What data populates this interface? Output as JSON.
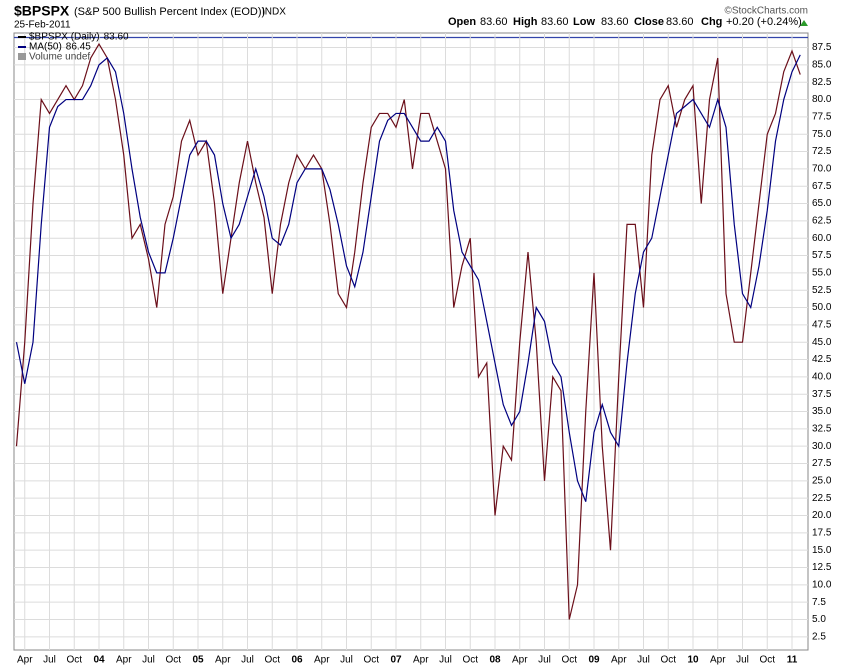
{
  "header": {
    "symbol": "$BPSPX",
    "description": "(S&P 500 Bullish Percent Index (EOD))",
    "exchange": "INDX",
    "date": "25-Feb-2011",
    "quote": [
      {
        "label": "Open",
        "value": "83.60"
      },
      {
        "label": "High",
        "value": "83.60"
      },
      {
        "label": "Low",
        "value": "83.60"
      },
      {
        "label": "Close",
        "value": "83.60"
      },
      {
        "label": "Chg",
        "value": "+0.20 (+0.24%)"
      }
    ],
    "credit": "©StockCharts.com"
  },
  "chart_data": {
    "type": "line",
    "categories": [
      null,
      "Apr",
      null,
      null,
      "Jul",
      null,
      null,
      "Oct",
      null,
      null,
      "04",
      null,
      null,
      "Apr",
      null,
      null,
      "Jul",
      null,
      null,
      "Oct",
      null,
      null,
      "05",
      null,
      null,
      "Apr",
      null,
      null,
      "Jul",
      null,
      null,
      "Oct",
      null,
      null,
      "06",
      null,
      null,
      "Apr",
      null,
      null,
      "Jul",
      null,
      null,
      "Oct",
      null,
      null,
      "07",
      null,
      null,
      "Apr",
      null,
      null,
      "Jul",
      null,
      null,
      "Oct",
      null,
      null,
      "08",
      null,
      null,
      "Apr",
      null,
      null,
      "Jul",
      null,
      null,
      "Oct",
      null,
      null,
      "09",
      null,
      null,
      "Apr",
      null,
      null,
      "Jul",
      null,
      null,
      "Oct",
      null,
      null,
      "10",
      null,
      null,
      "Apr",
      null,
      null,
      "Jul",
      null,
      null,
      "Oct",
      null,
      null,
      "11",
      null
    ],
    "series": [
      {
        "name": "$BPSPX (Daily)",
        "legend_value": "83.60",
        "color": "#6b0f1a",
        "values": [
          30,
          45,
          65,
          80,
          78,
          80,
          82,
          80,
          82,
          86,
          88,
          86,
          80,
          72,
          60,
          62,
          57,
          50,
          62,
          66,
          74,
          77,
          72,
          74,
          65,
          52,
          60,
          68,
          74,
          68,
          63,
          52,
          62,
          68,
          72,
          70,
          72,
          70,
          62,
          52,
          50,
          58,
          68,
          76,
          78,
          78,
          76,
          80,
          70,
          78,
          78,
          74,
          70,
          50,
          56,
          60,
          40,
          42,
          20,
          30,
          28,
          45,
          58,
          45,
          25,
          40,
          38,
          5,
          10,
          35,
          55,
          30,
          15,
          40,
          62,
          62,
          50,
          72,
          80,
          82,
          76,
          80,
          82,
          65,
          80,
          86,
          52,
          45,
          45,
          55,
          65,
          75,
          78,
          84,
          87,
          83.6
        ]
      },
      {
        "name": "MA(50)",
        "legend_value": "86.45",
        "color": "#000080",
        "values": [
          45,
          39,
          45,
          62,
          76,
          79,
          80,
          80,
          80,
          82,
          85,
          86,
          84,
          78,
          70,
          63,
          58,
          55,
          55,
          60,
          66,
          72,
          74,
          74,
          72,
          65,
          60,
          62,
          66,
          70,
          66,
          60,
          59,
          62,
          68,
          70,
          70,
          70,
          67,
          62,
          56,
          53,
          58,
          66,
          74,
          77,
          78,
          78,
          76,
          74,
          74,
          76,
          74,
          64,
          58,
          56,
          54,
          48,
          42,
          36,
          33,
          35,
          42,
          50,
          48,
          42,
          40,
          32,
          25,
          22,
          32,
          36,
          32,
          30,
          42,
          52,
          58,
          60,
          66,
          72,
          78,
          79,
          80,
          78,
          76,
          80,
          76,
          62,
          52,
          50,
          56,
          64,
          74,
          80,
          84,
          86.45
        ]
      }
    ],
    "volume_label": "Volume undef",
    "ylim": [
      0.6,
      89.6
    ],
    "yticks": [
      2.5,
      {
        "value": 5,
        "label": "5.0"
      },
      7.5,
      {
        "value": 10,
        "label": "10.0"
      },
      12.5,
      {
        "value": 15,
        "label": "15.0"
      },
      17.5,
      {
        "value": 20,
        "label": "20.0"
      },
      22.5,
      {
        "value": 25,
        "label": "25.0"
      },
      27.5,
      {
        "value": 30,
        "label": "30.0"
      },
      32.5,
      {
        "value": 35,
        "label": "35.0"
      },
      37.5,
      {
        "value": 40,
        "label": "40.0"
      },
      42.5,
      {
        "value": 45,
        "label": "45.0"
      },
      47.5,
      {
        "value": 50,
        "label": "50.0"
      },
      52.5,
      {
        "value": 55,
        "label": "55.0"
      },
      57.5,
      {
        "value": 60,
        "label": "60.0"
      },
      62.5,
      {
        "value": 65,
        "label": "65.0"
      },
      67.5,
      {
        "value": 70,
        "label": "70.0"
      },
      72.5,
      {
        "value": 75,
        "label": "75.0"
      },
      77.5,
      {
        "value": 80,
        "label": "80.0"
      },
      82.5,
      {
        "value": 85,
        "label": "85.0"
      },
      87.5
    ],
    "grid": true
  }
}
